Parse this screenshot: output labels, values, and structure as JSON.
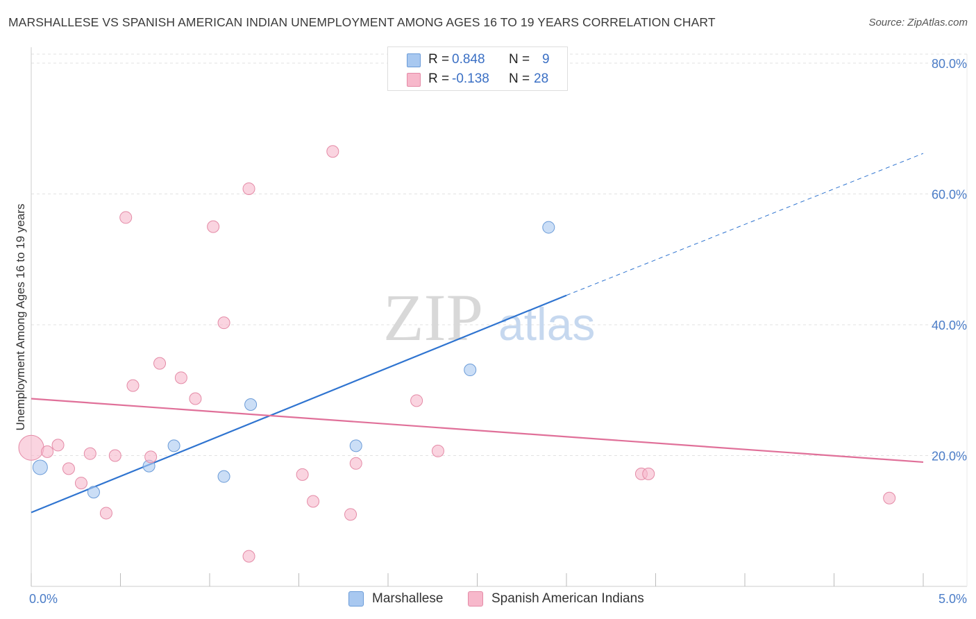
{
  "header": {
    "title": "MARSHALLESE VS SPANISH AMERICAN INDIAN UNEMPLOYMENT AMONG AGES 16 TO 19 YEARS CORRELATION CHART",
    "source": "Source: ZipAtlas.com"
  },
  "watermark": {
    "zip": "ZIP",
    "atlas": "atlas"
  },
  "stats": {
    "rows": [
      {
        "r_label": "R =",
        "r_value": "0.848",
        "n_label": "N =",
        "n_value": "9",
        "color": "#a8c8f0"
      },
      {
        "r_label": "R =",
        "r_value": "-0.138",
        "n_label": "N =",
        "n_value": "28",
        "color": "#f7b8cb"
      }
    ]
  },
  "legend": {
    "items": [
      {
        "label": "Marshallese",
        "color": "#a8c8f0"
      },
      {
        "label": "Spanish American Indians",
        "color": "#f7b8cb"
      }
    ]
  },
  "chart_data": {
    "type": "scatter",
    "title": "MARSHALLESE VS SPANISH AMERICAN INDIAN UNEMPLOYMENT AMONG AGES 16 TO 19 YEARS CORRELATION CHART",
    "xlabel": "",
    "ylabel": "Unemployment Among Ages 16 to 19 years",
    "xlim": [
      0,
      5
    ],
    "ylim": [
      0,
      80
    ],
    "x_ticks": [
      0,
      5
    ],
    "x_tick_labels": [
      "0.0%",
      "5.0%"
    ],
    "y_ticks": [
      20,
      40,
      60,
      80
    ],
    "y_tick_labels": [
      "20.0%",
      "40.0%",
      "60.0%",
      "80.0%"
    ],
    "grid": true,
    "legend_position": "bottom-center",
    "series": [
      {
        "name": "Marshallese",
        "color": "#a8c8f0",
        "stroke": "#6a9bd8",
        "line_color": "#2f74d0",
        "points": [
          [
            0.05,
            18.2
          ],
          [
            0.35,
            14.4
          ],
          [
            0.66,
            18.4
          ],
          [
            0.8,
            21.5
          ],
          [
            1.08,
            16.8
          ],
          [
            1.23,
            27.8
          ],
          [
            1.82,
            21.5
          ],
          [
            2.46,
            33.1
          ],
          [
            2.9,
            54.9
          ]
        ],
        "trend": {
          "x0": 0,
          "y0": 11.3,
          "x1": 3.0,
          "y1": 44.5,
          "dash_to_x": 5.0,
          "dash_to_y": 66.2
        }
      },
      {
        "name": "Spanish American Indians",
        "color": "#f7b8cb",
        "stroke": "#e48aa6",
        "line_color": "#e07099",
        "points": [
          [
            0.0,
            21.2
          ],
          [
            0.09,
            20.6
          ],
          [
            0.15,
            21.6
          ],
          [
            0.21,
            18.0
          ],
          [
            0.28,
            15.8
          ],
          [
            0.33,
            20.3
          ],
          [
            0.42,
            11.2
          ],
          [
            0.47,
            20.0
          ],
          [
            0.53,
            56.4
          ],
          [
            0.57,
            30.7
          ],
          [
            0.67,
            19.8
          ],
          [
            0.72,
            34.1
          ],
          [
            0.84,
            31.9
          ],
          [
            0.92,
            28.7
          ],
          [
            1.02,
            55.0
          ],
          [
            1.08,
            40.3
          ],
          [
            1.22,
            60.8
          ],
          [
            1.22,
            4.6
          ],
          [
            1.52,
            17.1
          ],
          [
            1.58,
            13.0
          ],
          [
            1.69,
            66.5
          ],
          [
            1.79,
            11.0
          ],
          [
            1.82,
            18.8
          ],
          [
            2.16,
            28.4
          ],
          [
            2.28,
            20.7
          ],
          [
            3.42,
            17.2
          ],
          [
            3.46,
            17.2
          ],
          [
            4.81,
            13.5
          ]
        ],
        "trend": {
          "x0": 0,
          "y0": 28.7,
          "x1": 5.0,
          "y1": 19.0
        }
      }
    ]
  }
}
